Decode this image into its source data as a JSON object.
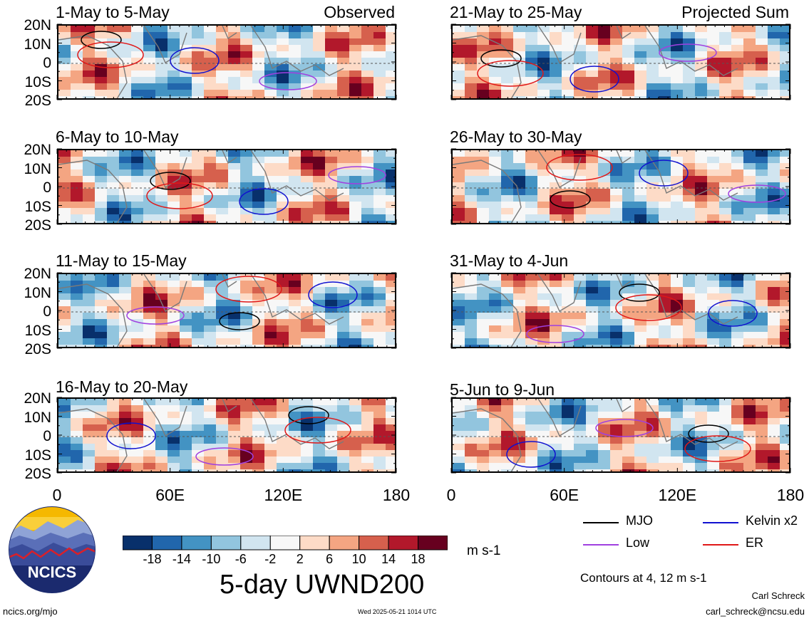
{
  "chart_data": {
    "type": "heatmap",
    "title": "5-day UWND200",
    "units": "m s-1",
    "column_labels": [
      "Observed",
      "Projected Sum"
    ],
    "x_ticks": [
      "0",
      "60E",
      "120E",
      "180"
    ],
    "y_ticks": [
      "20N",
      "10N",
      "0",
      "10S",
      "20S"
    ],
    "xlim": [
      0,
      180
    ],
    "ylim": [
      -20,
      20
    ],
    "colorbar": {
      "ticks": [
        "-18",
        "-14",
        "-10",
        "-6",
        "-2",
        "2",
        "6",
        "10",
        "14",
        "18"
      ],
      "colors": [
        "#08306b",
        "#2166ac",
        "#4393c3",
        "#92c5de",
        "#d1e5f0",
        "#f7f7f7",
        "#fddbc7",
        "#f4a582",
        "#d6604d",
        "#b2182b",
        "#67001f"
      ]
    },
    "panels": [
      {
        "label": "1-May to 5-May",
        "column": "Observed"
      },
      {
        "label": "6-May to 10-May",
        "column": "Observed"
      },
      {
        "label": "11-May to 15-May",
        "column": "Observed"
      },
      {
        "label": "16-May to 20-May",
        "column": "Observed"
      },
      {
        "label": "21-May to 25-May",
        "column": "Projected Sum"
      },
      {
        "label": "26-May to 30-May",
        "column": "Projected Sum"
      },
      {
        "label": "31-May to 4-Jun",
        "column": "Projected Sum"
      },
      {
        "label": "5-Jun to 9-Jun",
        "column": "Projected Sum"
      }
    ],
    "legend": [
      {
        "name": "MJO",
        "color": "#000000"
      },
      {
        "name": "Kelvin x2",
        "color": "#1010d0"
      },
      {
        "name": "Low",
        "color": "#a040e0"
      },
      {
        "name": "ER",
        "color": "#e01818"
      }
    ],
    "contour_note": "Contours at 4, 12 m s-1"
  },
  "footer": {
    "logo_text": "NCICS",
    "site": "ncics.org/mjo",
    "timestamp": "Wed 2025-05-21 1014 UTC",
    "author": "Carl Schreck",
    "email": "carl_schreck@ncsu.edu"
  }
}
